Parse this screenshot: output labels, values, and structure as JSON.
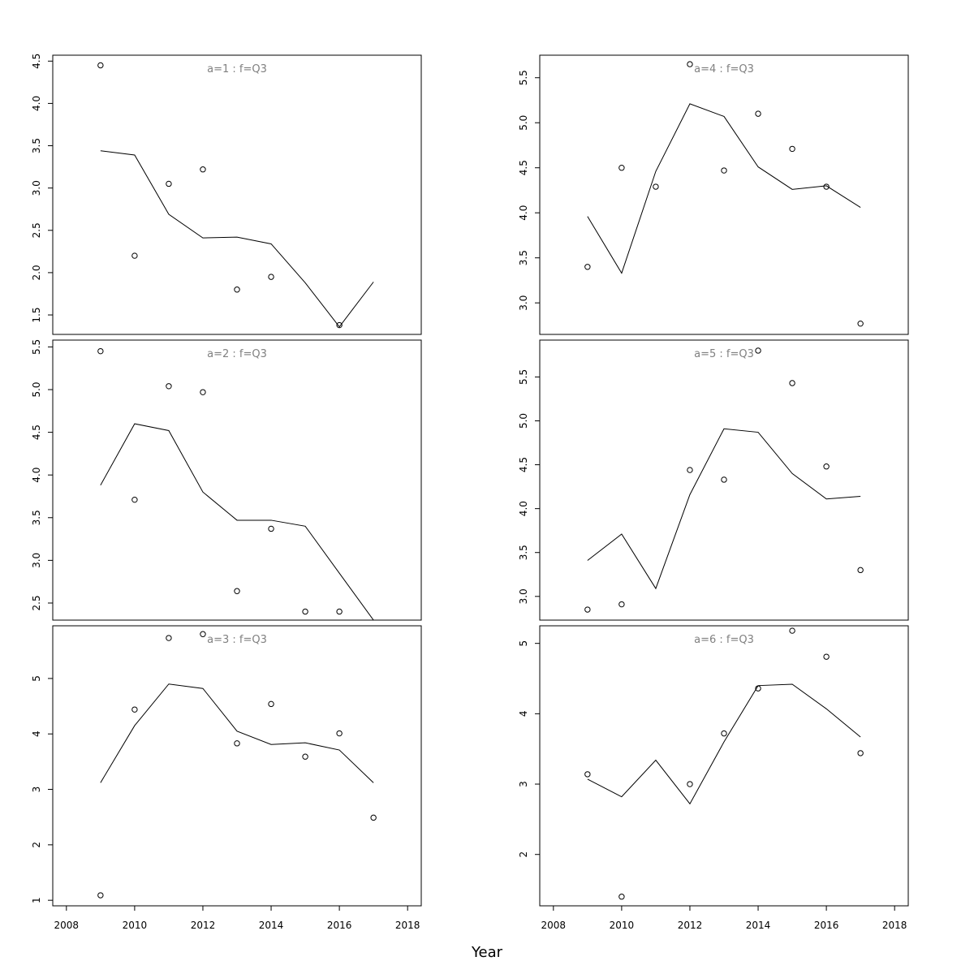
{
  "chart_data": {
    "type": "scatter",
    "layout": "2 columns x 3 rows, shared x axis per column",
    "xlabel": "Year",
    "xlim": [
      2007.6,
      2018.4
    ],
    "xticks": [
      2008,
      2010,
      2012,
      2014,
      2016,
      2018
    ],
    "xtick_labels": [
      "2008",
      "2010",
      "2012",
      "2014",
      "2016",
      "2018"
    ],
    "grid": false,
    "colors": {
      "points": "#000000",
      "line": "#000000",
      "panel_title": "#808080"
    },
    "panels": [
      {
        "title": "a=1 : f=Q3",
        "ylim": [
          1.27,
          4.57
        ],
        "yticks": [
          1.5,
          2.0,
          2.5,
          3.0,
          3.5,
          4.0,
          4.5
        ],
        "ytick_labels": [
          "1.5",
          "2.0",
          "2.5",
          "3.0",
          "3.5",
          "4.0",
          "4.5"
        ],
        "observed": {
          "x": [
            2009,
            2010,
            2011,
            2012,
            2013,
            2014,
            2016
          ],
          "y": [
            4.45,
            2.2,
            3.05,
            3.22,
            1.8,
            1.95,
            1.38
          ]
        },
        "fitted": {
          "x": [
            2009,
            2010,
            2011,
            2012,
            2013,
            2014,
            2015,
            2016,
            2017
          ],
          "y": [
            3.44,
            3.39,
            2.69,
            2.41,
            2.42,
            2.34,
            1.88,
            1.36,
            1.89
          ]
        }
      },
      {
        "title": "a=4 : f=Q3",
        "ylim": [
          2.65,
          5.75
        ],
        "yticks": [
          3.0,
          3.5,
          4.0,
          4.5,
          5.0,
          5.5
        ],
        "ytick_labels": [
          "3.0",
          "3.5",
          "4.0",
          "4.5",
          "5.0",
          "5.5"
        ],
        "observed": {
          "x": [
            2009,
            2010,
            2011,
            2012,
            2013,
            2014,
            2015,
            2016,
            2017
          ],
          "y": [
            3.4,
            4.5,
            4.29,
            5.65,
            4.47,
            5.1,
            4.71,
            4.29,
            2.77
          ]
        },
        "fitted": {
          "x": [
            2009,
            2010,
            2011,
            2012,
            2013,
            2014,
            2015,
            2016,
            2017
          ],
          "y": [
            3.96,
            3.33,
            4.46,
            5.21,
            5.07,
            4.51,
            4.26,
            4.3,
            4.06
          ]
        }
      },
      {
        "title": "a=2 : f=Q3",
        "ylim": [
          2.3,
          5.58
        ],
        "yticks": [
          2.5,
          3.0,
          3.5,
          4.0,
          4.5,
          5.0,
          5.5
        ],
        "ytick_labels": [
          "2.5",
          "3.0",
          "3.5",
          "4.0",
          "4.5",
          "5.0",
          "5.5"
        ],
        "observed": {
          "x": [
            2009,
            2010,
            2011,
            2012,
            2013,
            2014,
            2015,
            2016
          ],
          "y": [
            5.45,
            3.71,
            5.04,
            4.97,
            2.64,
            3.37,
            2.4,
            2.4
          ]
        },
        "fitted": {
          "x": [
            2009,
            2010,
            2011,
            2012,
            2013,
            2014,
            2015,
            2016,
            2017
          ],
          "y": [
            3.88,
            4.6,
            4.52,
            3.8,
            3.47,
            3.47,
            3.4,
            2.85,
            2.3
          ]
        }
      },
      {
        "title": "a=5 : f=Q3",
        "ylim": [
          2.73,
          5.92
        ],
        "yticks": [
          3.0,
          3.5,
          4.0,
          4.5,
          5.0,
          5.5
        ],
        "ytick_labels": [
          "3.0",
          "3.5",
          "4.0",
          "4.5",
          "5.0",
          "5.5"
        ],
        "observed": {
          "x": [
            2009,
            2010,
            2012,
            2013,
            2014,
            2015,
            2016,
            2017
          ],
          "y": [
            2.85,
            2.91,
            4.44,
            4.33,
            5.8,
            5.43,
            4.48,
            3.3
          ]
        },
        "fitted": {
          "x": [
            2009,
            2010,
            2011,
            2012,
            2013,
            2014,
            2015,
            2016,
            2017
          ],
          "y": [
            3.41,
            3.71,
            3.09,
            4.16,
            4.91,
            4.87,
            4.4,
            4.11,
            4.14
          ]
        }
      },
      {
        "title": "a=3 : f=Q3",
        "ylim": [
          0.9,
          5.95
        ],
        "yticks": [
          1,
          2,
          3,
          4,
          5
        ],
        "ytick_labels": [
          "1",
          "2",
          "3",
          "4",
          "5"
        ],
        "observed": {
          "x": [
            2009,
            2010,
            2011,
            2012,
            2013,
            2014,
            2015,
            2016,
            2017
          ],
          "y": [
            1.09,
            4.44,
            5.73,
            5.8,
            3.83,
            4.54,
            3.59,
            4.01,
            2.49
          ]
        },
        "fitted": {
          "x": [
            2009,
            2010,
            2011,
            2012,
            2013,
            2014,
            2015,
            2016,
            2017
          ],
          "y": [
            3.12,
            4.15,
            4.9,
            4.82,
            4.05,
            3.81,
            3.84,
            3.71,
            3.12
          ]
        }
      },
      {
        "title": "a=6 : f=Q3",
        "ylim": [
          1.27,
          5.25
        ],
        "yticks": [
          2,
          3,
          4,
          5
        ],
        "ytick_labels": [
          "2",
          "3",
          "4",
          "5"
        ],
        "observed": {
          "x": [
            2009,
            2010,
            2012,
            2013,
            2014,
            2015,
            2016,
            2017
          ],
          "y": [
            3.14,
            1.4,
            3.0,
            3.72,
            4.36,
            5.18,
            4.81,
            3.44
          ]
        },
        "fitted": {
          "x": [
            2009,
            2010,
            2011,
            2012,
            2013,
            2014,
            2015,
            2016,
            2017
          ],
          "y": [
            3.07,
            2.82,
            3.34,
            2.72,
            3.6,
            4.4,
            4.42,
            4.07,
            3.67
          ]
        }
      }
    ]
  }
}
